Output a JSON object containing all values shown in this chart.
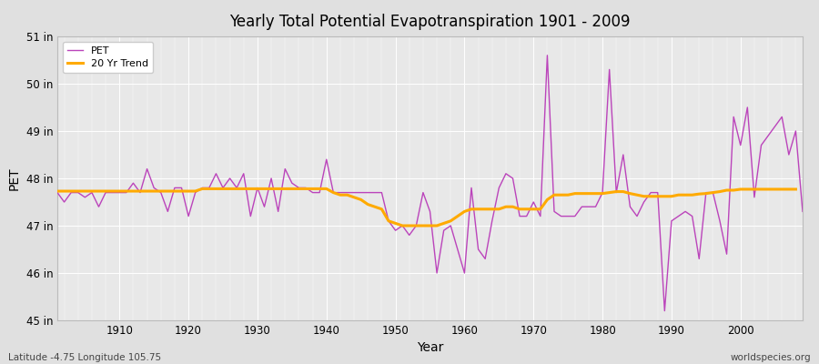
{
  "title": "Yearly Total Potential Evapotranspiration 1901 - 2009",
  "xlabel": "Year",
  "ylabel": "PET",
  "lat_lon_label": "Latitude -4.75 Longitude 105.75",
  "source_label": "worldspecies.org",
  "ylim": [
    45,
    51
  ],
  "ytick_labels": [
    "45 in",
    "46 in",
    "47 in",
    "48 in",
    "49 in",
    "50 in",
    "51 in"
  ],
  "ytick_values": [
    45,
    46,
    47,
    48,
    49,
    50,
    51
  ],
  "xlim": [
    1901,
    2009
  ],
  "xtick_values": [
    1910,
    1920,
    1930,
    1940,
    1950,
    1960,
    1970,
    1980,
    1990,
    2000
  ],
  "pet_color": "#bb44bb",
  "trend_color": "#ffaa00",
  "fig_bg_color": "#e0e0e0",
  "plot_bg_color": "#e8e8e8",
  "grid_color": "#ffffff",
  "years": [
    1901,
    1902,
    1903,
    1904,
    1905,
    1906,
    1907,
    1908,
    1909,
    1910,
    1911,
    1912,
    1913,
    1914,
    1915,
    1916,
    1917,
    1918,
    1919,
    1920,
    1921,
    1922,
    1923,
    1924,
    1925,
    1926,
    1927,
    1928,
    1929,
    1930,
    1931,
    1932,
    1933,
    1934,
    1935,
    1936,
    1937,
    1938,
    1939,
    1940,
    1941,
    1942,
    1943,
    1944,
    1945,
    1946,
    1947,
    1948,
    1949,
    1950,
    1951,
    1952,
    1953,
    1954,
    1955,
    1956,
    1957,
    1958,
    1959,
    1960,
    1961,
    1962,
    1963,
    1964,
    1965,
    1966,
    1967,
    1968,
    1969,
    1970,
    1971,
    1972,
    1973,
    1974,
    1975,
    1976,
    1977,
    1978,
    1979,
    1980,
    1981,
    1982,
    1983,
    1984,
    1985,
    1986,
    1987,
    1988,
    1989,
    1990,
    1991,
    1992,
    1993,
    1994,
    1995,
    1996,
    1997,
    1998,
    1999,
    2000,
    2001,
    2002,
    2003,
    2004,
    2005,
    2006,
    2007,
    2008,
    2009
  ],
  "pet_values": [
    47.7,
    47.5,
    47.7,
    47.7,
    47.6,
    47.7,
    47.4,
    47.7,
    47.7,
    47.7,
    47.7,
    47.9,
    47.7,
    48.2,
    47.8,
    47.7,
    47.3,
    47.8,
    47.8,
    47.2,
    47.7,
    47.8,
    47.8,
    48.1,
    47.8,
    48.0,
    47.8,
    48.1,
    47.2,
    47.8,
    47.4,
    48.0,
    47.3,
    48.2,
    47.9,
    47.8,
    47.8,
    47.7,
    47.7,
    48.4,
    47.7,
    47.7,
    47.7,
    47.7,
    47.7,
    47.7,
    47.7,
    47.7,
    47.1,
    46.9,
    47.0,
    46.8,
    47.0,
    47.7,
    47.3,
    46.0,
    46.9,
    47.0,
    46.5,
    46.0,
    47.8,
    46.5,
    46.3,
    47.1,
    47.8,
    48.1,
    48.0,
    47.2,
    47.2,
    47.5,
    47.2,
    50.6,
    47.3,
    47.2,
    47.2,
    47.2,
    47.4,
    47.4,
    47.4,
    47.7,
    50.3,
    47.7,
    48.5,
    47.4,
    47.2,
    47.5,
    47.7,
    47.7,
    45.2,
    47.1,
    47.2,
    47.3,
    47.2,
    46.3,
    47.7,
    47.7,
    47.1,
    46.4,
    49.3,
    48.7,
    49.5,
    47.6,
    48.7,
    48.9,
    49.1,
    49.3,
    48.5,
    49.0,
    47.3
  ],
  "trend_values": [
    47.73,
    47.73,
    47.73,
    47.73,
    47.73,
    47.73,
    47.73,
    47.73,
    47.73,
    47.73,
    47.73,
    47.73,
    47.73,
    47.73,
    47.73,
    47.73,
    47.73,
    47.73,
    47.73,
    47.73,
    47.73,
    47.78,
    47.78,
    47.78,
    47.78,
    47.78,
    47.78,
    47.78,
    47.78,
    47.78,
    47.78,
    47.78,
    47.78,
    47.78,
    47.78,
    47.78,
    47.78,
    47.78,
    47.78,
    47.78,
    47.7,
    47.65,
    47.65,
    47.6,
    47.55,
    47.45,
    47.4,
    47.35,
    47.1,
    47.05,
    47.0,
    47.0,
    47.0,
    47.0,
    47.0,
    47.0,
    47.05,
    47.1,
    47.2,
    47.3,
    47.35,
    47.35,
    47.35,
    47.35,
    47.35,
    47.4,
    47.4,
    47.35,
    47.35,
    47.35,
    47.35,
    47.55,
    47.65,
    47.65,
    47.65,
    47.68,
    47.68,
    47.68,
    47.68,
    47.68,
    47.7,
    47.72,
    47.72,
    47.68,
    47.65,
    47.62,
    47.62,
    47.62,
    47.62,
    47.62,
    47.65,
    47.65,
    47.65,
    47.67,
    47.68,
    47.7,
    47.72,
    47.75,
    47.75,
    47.77,
    47.77,
    47.77,
    47.77,
    47.77,
    47.77,
    47.77,
    47.77,
    47.77,
    null
  ]
}
